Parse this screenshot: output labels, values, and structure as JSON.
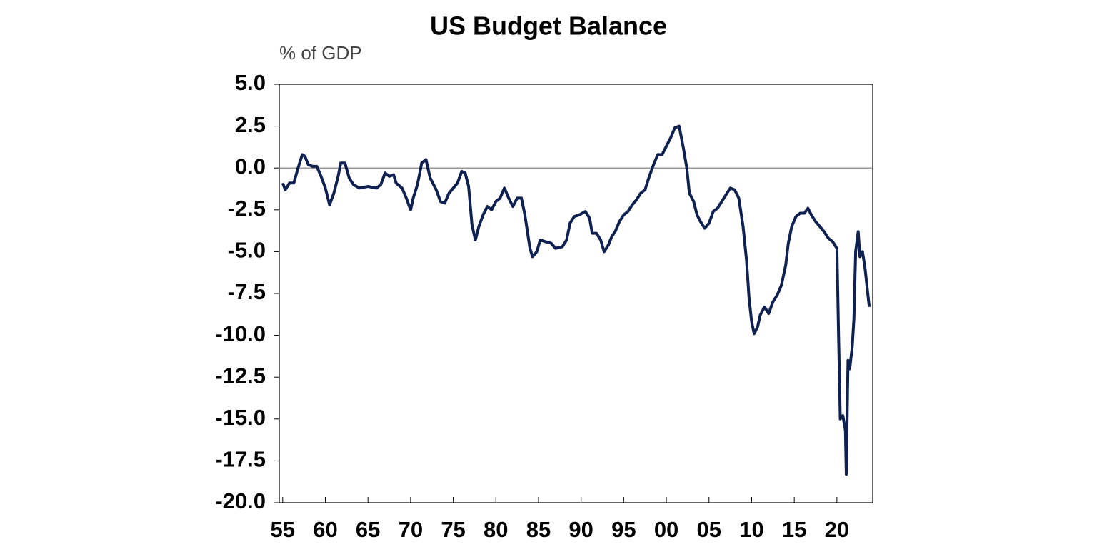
{
  "chart_data": {
    "type": "line",
    "title": "US Budget Balance",
    "y_axis_label": "% of GDP",
    "color": "#0f2151",
    "zero_line": true,
    "xlim": [
      1954.6,
      2024.2
    ],
    "xticks": [
      {
        "value": 1955,
        "label": "55"
      },
      {
        "value": 1960,
        "label": "60"
      },
      {
        "value": 1965,
        "label": "65"
      },
      {
        "value": 1970,
        "label": "70"
      },
      {
        "value": 1975,
        "label": "75"
      },
      {
        "value": 1980,
        "label": "80"
      },
      {
        "value": 1985,
        "label": "85"
      },
      {
        "value": 1990,
        "label": "90"
      },
      {
        "value": 1995,
        "label": "95"
      },
      {
        "value": 2000,
        "label": "00"
      },
      {
        "value": 2005,
        "label": "05"
      },
      {
        "value": 2010,
        "label": "10"
      },
      {
        "value": 2015,
        "label": "15"
      },
      {
        "value": 2020,
        "label": "20"
      }
    ],
    "ylim": [
      -20,
      5
    ],
    "yticks": [
      {
        "value": 5,
        "label": "5.0"
      },
      2.5,
      {
        "value": 0,
        "label": "0.0"
      },
      -2.5,
      {
        "value": -5,
        "label": "-5.0"
      },
      -7.5,
      {
        "value": -10,
        "label": "-10.0"
      },
      -12.5,
      {
        "value": -15,
        "label": "-15.0"
      },
      -17.5,
      {
        "value": -20,
        "label": "-20.0"
      }
    ],
    "x": [
      1955,
      1955.3,
      1955.8,
      1956.3,
      1956.8,
      1957.3,
      1957.6,
      1958,
      1958.5,
      1959,
      1959.5,
      1960,
      1960.5,
      1961,
      1961.5,
      1961.8,
      1962.3,
      1962.8,
      1963.3,
      1964,
      1965,
      1966,
      1966.5,
      1967,
      1967.5,
      1968,
      1968.3,
      1969,
      1969.5,
      1970,
      1970.3,
      1970.8,
      1971.3,
      1971.8,
      1972.3,
      1973,
      1973.5,
      1974,
      1974.5,
      1975,
      1975.5,
      1976,
      1976.4,
      1976.8,
      1977.2,
      1977.6,
      1978,
      1978.5,
      1979,
      1979.5,
      1980,
      1980.5,
      1981,
      1981.5,
      1982,
      1982.5,
      1983,
      1983.4,
      1984,
      1984.3,
      1984.8,
      1985.2,
      1985.8,
      1986.5,
      1987,
      1987.8,
      1988.3,
      1988.7,
      1989.2,
      1989.8,
      1990.5,
      1991,
      1991.3,
      1991.8,
      1992.3,
      1992.7,
      1993.2,
      1993.6,
      1994,
      1994.5,
      1995,
      1995.5,
      1996,
      1996.5,
      1997,
      1997.5,
      1998,
      1998.5,
      1999,
      1999.5,
      2000,
      2000.5,
      2001,
      2001.5,
      2002,
      2002.4,
      2002.7,
      2003.2,
      2003.6,
      2004,
      2004.5,
      2005,
      2005.5,
      2006,
      2006.5,
      2007,
      2007.5,
      2008,
      2008.5,
      2009,
      2009.4,
      2009.7,
      2010,
      2010.3,
      2010.7,
      2011,
      2011.5,
      2012,
      2012.5,
      2013,
      2013.5,
      2014,
      2014.3,
      2014.7,
      2015.2,
      2015.7,
      2016.2,
      2016.6,
      2017,
      2017.5,
      2018,
      2018.5,
      2019,
      2019.5,
      2020,
      2020.2,
      2020.4,
      2020.7,
      2021,
      2021.1,
      2021.3,
      2021.5,
      2021.8,
      2022,
      2022.2,
      2022.5,
      2022.7,
      2023,
      2023.3,
      2023.6,
      2023.8
    ],
    "values": [
      -0.9,
      -1.3,
      -0.9,
      -0.9,
      0.0,
      0.8,
      0.7,
      0.2,
      0.1,
      0.1,
      -0.5,
      -1.2,
      -2.2,
      -1.5,
      -0.5,
      0.3,
      0.3,
      -0.6,
      -1.0,
      -1.2,
      -1.1,
      -1.2,
      -1.0,
      -0.3,
      -0.5,
      -0.4,
      -0.9,
      -1.2,
      -1.8,
      -2.5,
      -1.8,
      -1.0,
      0.3,
      0.5,
      -0.6,
      -1.3,
      -2.0,
      -2.1,
      -1.5,
      -1.2,
      -0.9,
      -0.2,
      -0.3,
      -1.1,
      -3.4,
      -4.3,
      -3.5,
      -2.8,
      -2.3,
      -2.5,
      -2.0,
      -1.8,
      -1.2,
      -1.8,
      -2.3,
      -1.8,
      -1.8,
      -2.8,
      -4.8,
      -5.3,
      -5.0,
      -4.3,
      -4.4,
      -4.5,
      -4.8,
      -4.7,
      -4.3,
      -3.3,
      -2.9,
      -2.8,
      -2.6,
      -3.0,
      -3.9,
      -3.9,
      -4.3,
      -5.0,
      -4.6,
      -4.1,
      -3.8,
      -3.2,
      -2.8,
      -2.6,
      -2.2,
      -1.9,
      -1.5,
      -1.3,
      -0.5,
      0.2,
      0.8,
      0.8,
      1.3,
      1.8,
      2.4,
      2.5,
      1.2,
      0.0,
      -1.5,
      -2.0,
      -2.8,
      -3.2,
      -3.6,
      -3.3,
      -2.6,
      -2.4,
      -2.0,
      -1.6,
      -1.2,
      -1.3,
      -1.8,
      -3.5,
      -5.5,
      -7.8,
      -9.2,
      -9.9,
      -9.5,
      -8.8,
      -8.3,
      -8.7,
      -8.0,
      -7.6,
      -7.0,
      -5.8,
      -4.5,
      -3.5,
      -2.9,
      -2.7,
      -2.7,
      -2.4,
      -2.8,
      -3.2,
      -3.5,
      -3.8,
      -4.2,
      -4.4,
      -4.8,
      -10.0,
      -15.0,
      -14.8,
      -15.7,
      -18.3,
      -11.5,
      -12.0,
      -10.7,
      -9.0,
      -5.0,
      -3.8,
      -5.3,
      -5.0,
      -6.0,
      -7.4,
      -8.3
    ]
  }
}
